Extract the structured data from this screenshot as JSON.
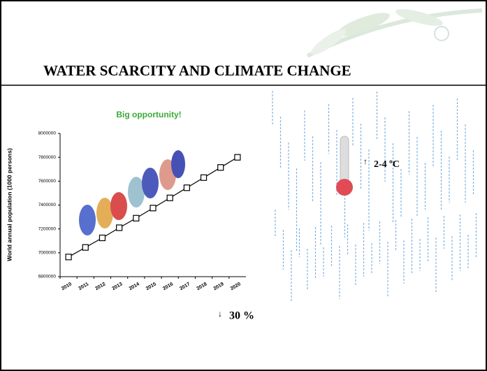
{
  "slide": {
    "title": "WATER SCARCITY AND CLIMATE CHANGE",
    "annotations": [
      "2-4 ºC",
      "30 %"
    ]
  },
  "chart_data": {
    "type": "line",
    "title": "Big opportunity!",
    "y_label": "World annual population (1000 persons)",
    "categories": [
      "2010",
      "2011",
      "2012",
      "2013",
      "2014",
      "2015",
      "2016",
      "2017",
      "2018",
      "2019",
      "2020"
    ],
    "values": [
      6965000,
      7045000,
      7125000,
      7210000,
      7290000,
      7375000,
      7460000,
      7545000,
      7630000,
      7715000,
      7800000
    ],
    "color": "#000000",
    "marker_fill": "#ffffff",
    "title_color": "#3aaa35",
    "ylim": [
      6800000,
      8000000
    ],
    "yticks": [
      6800000,
      7000000,
      7200000,
      7400000,
      7600000,
      7800000,
      8000000
    ],
    "grid": false
  }
}
